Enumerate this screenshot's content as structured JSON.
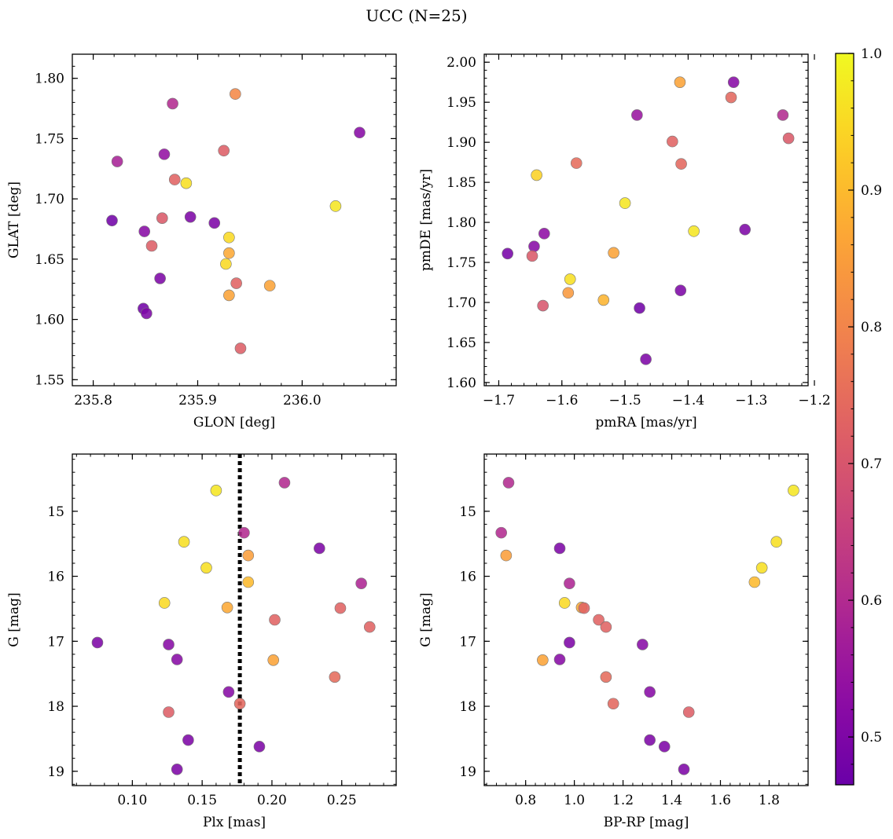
{
  "figure_title": "UCC (N=25)",
  "colorbar": {
    "colormap": "plasma",
    "range": [
      0.465,
      1.0
    ],
    "ticks": [
      0.5,
      0.6,
      0.7,
      0.8,
      0.9,
      1.0
    ],
    "tick_labels": [
      "0.5",
      "0.6",
      "0.7",
      "0.8",
      "0.9",
      "1.0"
    ]
  },
  "chart_data": [
    {
      "type": "scatter",
      "id": "glon-glat",
      "title": "",
      "xlabel": "GLON [deg]",
      "ylabel": "GLAT [deg]",
      "xlim": [
        235.78,
        236.09
      ],
      "ylim": [
        1.545,
        1.82
      ],
      "xticks": [
        235.8,
        235.9,
        236.0
      ],
      "xtick_labels": [
        "235.8",
        "235.9",
        "236.0"
      ],
      "yticks": [
        1.55,
        1.6,
        1.65,
        1.7,
        1.75,
        1.8
      ],
      "ytick_labels": [
        "1.55",
        "1.60",
        "1.65",
        "1.70",
        "1.75",
        "1.80"
      ],
      "y_inverted": false,
      "points": [
        {
          "x": 236.055,
          "y": 1.755,
          "c": 0.52
        },
        {
          "x": 235.936,
          "y": 1.787,
          "c": 0.81
        },
        {
          "x": 235.876,
          "y": 1.779,
          "c": 0.6
        },
        {
          "x": 235.823,
          "y": 1.731,
          "c": 0.58
        },
        {
          "x": 235.868,
          "y": 1.737,
          "c": 0.54
        },
        {
          "x": 235.925,
          "y": 1.74,
          "c": 0.72
        },
        {
          "x": 235.878,
          "y": 1.716,
          "c": 0.73
        },
        {
          "x": 235.889,
          "y": 1.713,
          "c": 0.96
        },
        {
          "x": 236.032,
          "y": 1.694,
          "c": 0.97
        },
        {
          "x": 235.818,
          "y": 1.682,
          "c": 0.48
        },
        {
          "x": 235.893,
          "y": 1.685,
          "c": 0.5
        },
        {
          "x": 235.866,
          "y": 1.684,
          "c": 0.71
        },
        {
          "x": 235.916,
          "y": 1.68,
          "c": 0.5
        },
        {
          "x": 235.849,
          "y": 1.673,
          "c": 0.52
        },
        {
          "x": 235.93,
          "y": 1.668,
          "c": 0.95
        },
        {
          "x": 235.856,
          "y": 1.661,
          "c": 0.72
        },
        {
          "x": 235.93,
          "y": 1.655,
          "c": 0.87
        },
        {
          "x": 235.927,
          "y": 1.646,
          "c": 0.95
        },
        {
          "x": 235.864,
          "y": 1.634,
          "c": 0.5
        },
        {
          "x": 235.937,
          "y": 1.63,
          "c": 0.73
        },
        {
          "x": 235.969,
          "y": 1.628,
          "c": 0.86
        },
        {
          "x": 235.93,
          "y": 1.62,
          "c": 0.86
        },
        {
          "x": 235.848,
          "y": 1.609,
          "c": 0.48
        },
        {
          "x": 235.851,
          "y": 1.605,
          "c": 0.5
        },
        {
          "x": 235.941,
          "y": 1.576,
          "c": 0.72
        }
      ]
    },
    {
      "type": "scatter",
      "id": "pmra-pmde",
      "title": "",
      "xlabel": "pmRA [mas/yr]",
      "ylabel": "pmDE [mas/yr]",
      "xlim": [
        -1.723,
        -1.21
      ],
      "ylim": [
        1.596,
        2.01
      ],
      "xticks": [
        -1.7,
        -1.6,
        -1.5,
        -1.4,
        -1.3,
        -1.2
      ],
      "xtick_labels": [
        "−1.7",
        "−1.6",
        "−1.5",
        "−1.4",
        "−1.3",
        "−1.2"
      ],
      "yticks": [
        1.6,
        1.65,
        1.7,
        1.75,
        1.8,
        1.85,
        1.9,
        1.95,
        2.0
      ],
      "ytick_labels": [
        "1.60",
        "1.65",
        "1.70",
        "1.75",
        "1.80",
        "1.85",
        "1.90",
        "1.95",
        "2.00"
      ],
      "y_inverted": false,
      "points": [
        {
          "x": -1.413,
          "y": 1.975,
          "c": 0.86
        },
        {
          "x": -1.328,
          "y": 1.975,
          "c": 0.52
        },
        {
          "x": -1.332,
          "y": 1.956,
          "c": 0.74
        },
        {
          "x": -1.481,
          "y": 1.934,
          "c": 0.55
        },
        {
          "x": -1.25,
          "y": 1.934,
          "c": 0.6
        },
        {
          "x": -1.241,
          "y": 1.905,
          "c": 0.71
        },
        {
          "x": -1.425,
          "y": 1.901,
          "c": 0.73
        },
        {
          "x": -1.411,
          "y": 1.873,
          "c": 0.74
        },
        {
          "x": -1.577,
          "y": 1.874,
          "c": 0.75
        },
        {
          "x": -1.64,
          "y": 1.859,
          "c": 0.94
        },
        {
          "x": -1.5,
          "y": 1.824,
          "c": 0.97
        },
        {
          "x": -1.391,
          "y": 1.789,
          "c": 0.97
        },
        {
          "x": -1.31,
          "y": 1.791,
          "c": 0.5
        },
        {
          "x": -1.628,
          "y": 1.786,
          "c": 0.53
        },
        {
          "x": -1.644,
          "y": 1.77,
          "c": 0.52
        },
        {
          "x": -1.686,
          "y": 1.761,
          "c": 0.49
        },
        {
          "x": -1.647,
          "y": 1.758,
          "c": 0.71
        },
        {
          "x": -1.518,
          "y": 1.762,
          "c": 0.86
        },
        {
          "x": -1.587,
          "y": 1.729,
          "c": 0.96
        },
        {
          "x": -1.412,
          "y": 1.715,
          "c": 0.5
        },
        {
          "x": -1.59,
          "y": 1.712,
          "c": 0.84
        },
        {
          "x": -1.534,
          "y": 1.703,
          "c": 0.89
        },
        {
          "x": -1.63,
          "y": 1.696,
          "c": 0.7
        },
        {
          "x": -1.477,
          "y": 1.693,
          "c": 0.48
        },
        {
          "x": -1.467,
          "y": 1.629,
          "c": 0.5
        }
      ]
    },
    {
      "type": "scatter",
      "id": "plx-g",
      "title": "",
      "xlabel": "Plx [mas]",
      "ylabel": "G [mag]",
      "xlim": [
        0.057,
        0.289
      ],
      "ylim": [
        14.12,
        19.22
      ],
      "xticks": [
        0.1,
        0.15,
        0.2,
        0.25
      ],
      "xtick_labels": [
        "0.10",
        "0.15",
        "0.20",
        "0.25"
      ],
      "yticks": [
        15,
        16,
        17,
        18,
        19
      ],
      "ytick_labels": [
        "15",
        "16",
        "17",
        "18",
        "19"
      ],
      "y_inverted": true,
      "vline": {
        "x": 0.177,
        "style": "dotted"
      },
      "points": [
        {
          "x": 0.209,
          "y": 14.56,
          "c": 0.6
        },
        {
          "x": 0.16,
          "y": 14.68,
          "c": 0.97
        },
        {
          "x": 0.137,
          "y": 15.47,
          "c": 0.96
        },
        {
          "x": 0.234,
          "y": 15.57,
          "c": 0.5
        },
        {
          "x": 0.18,
          "y": 15.33,
          "c": 0.6
        },
        {
          "x": 0.183,
          "y": 15.68,
          "c": 0.85
        },
        {
          "x": 0.153,
          "y": 15.87,
          "c": 0.96
        },
        {
          "x": 0.183,
          "y": 16.09,
          "c": 0.9
        },
        {
          "x": 0.264,
          "y": 16.11,
          "c": 0.59
        },
        {
          "x": 0.123,
          "y": 16.41,
          "c": 0.95
        },
        {
          "x": 0.168,
          "y": 16.48,
          "c": 0.87
        },
        {
          "x": 0.249,
          "y": 16.49,
          "c": 0.73
        },
        {
          "x": 0.202,
          "y": 16.67,
          "c": 0.73
        },
        {
          "x": 0.27,
          "y": 16.78,
          "c": 0.73
        },
        {
          "x": 0.075,
          "y": 17.02,
          "c": 0.5
        },
        {
          "x": 0.126,
          "y": 17.05,
          "c": 0.52
        },
        {
          "x": 0.132,
          "y": 17.28,
          "c": 0.52
        },
        {
          "x": 0.201,
          "y": 17.29,
          "c": 0.86
        },
        {
          "x": 0.245,
          "y": 17.55,
          "c": 0.75
        },
        {
          "x": 0.169,
          "y": 17.78,
          "c": 0.52
        },
        {
          "x": 0.177,
          "y": 17.96,
          "c": 0.74
        },
        {
          "x": 0.126,
          "y": 18.09,
          "c": 0.72
        },
        {
          "x": 0.14,
          "y": 18.52,
          "c": 0.5
        },
        {
          "x": 0.191,
          "y": 18.62,
          "c": 0.5
        },
        {
          "x": 0.132,
          "y": 18.97,
          "c": 0.5
        }
      ]
    },
    {
      "type": "scatter",
      "id": "bprp-g",
      "title": "",
      "xlabel": "BP-RP [mag]",
      "ylabel": "G [mag]",
      "xlim": [
        0.63,
        1.96
      ],
      "ylim": [
        14.12,
        19.22
      ],
      "xticks": [
        0.8,
        1.0,
        1.2,
        1.4,
        1.6,
        1.8
      ],
      "xtick_labels": [
        "0.8",
        "1.0",
        "1.2",
        "1.4",
        "1.6",
        "1.8"
      ],
      "yticks": [
        15,
        16,
        17,
        18,
        19
      ],
      "ytick_labels": [
        "15",
        "16",
        "17",
        "18",
        "19"
      ],
      "y_inverted": true,
      "points": [
        {
          "x": 0.73,
          "y": 14.56,
          "c": 0.6
        },
        {
          "x": 1.9,
          "y": 14.68,
          "c": 0.97
        },
        {
          "x": 1.83,
          "y": 15.47,
          "c": 0.96
        },
        {
          "x": 0.94,
          "y": 15.57,
          "c": 0.5
        },
        {
          "x": 0.7,
          "y": 15.33,
          "c": 0.6
        },
        {
          "x": 0.72,
          "y": 15.68,
          "c": 0.85
        },
        {
          "x": 1.77,
          "y": 15.87,
          "c": 0.96
        },
        {
          "x": 1.74,
          "y": 16.09,
          "c": 0.9
        },
        {
          "x": 0.98,
          "y": 16.11,
          "c": 0.59
        },
        {
          "x": 0.96,
          "y": 16.41,
          "c": 0.95
        },
        {
          "x": 1.03,
          "y": 16.48,
          "c": 0.87
        },
        {
          "x": 1.04,
          "y": 16.49,
          "c": 0.73
        },
        {
          "x": 1.1,
          "y": 16.67,
          "c": 0.73
        },
        {
          "x": 1.13,
          "y": 16.78,
          "c": 0.73
        },
        {
          "x": 0.98,
          "y": 17.02,
          "c": 0.5
        },
        {
          "x": 1.28,
          "y": 17.05,
          "c": 0.52
        },
        {
          "x": 0.94,
          "y": 17.28,
          "c": 0.52
        },
        {
          "x": 0.87,
          "y": 17.29,
          "c": 0.86
        },
        {
          "x": 1.13,
          "y": 17.55,
          "c": 0.75
        },
        {
          "x": 1.31,
          "y": 17.78,
          "c": 0.52
        },
        {
          "x": 1.16,
          "y": 17.96,
          "c": 0.74
        },
        {
          "x": 1.47,
          "y": 18.09,
          "c": 0.72
        },
        {
          "x": 1.31,
          "y": 18.52,
          "c": 0.5
        },
        {
          "x": 1.37,
          "y": 18.62,
          "c": 0.5
        },
        {
          "x": 1.45,
          "y": 18.97,
          "c": 0.5
        }
      ]
    }
  ]
}
